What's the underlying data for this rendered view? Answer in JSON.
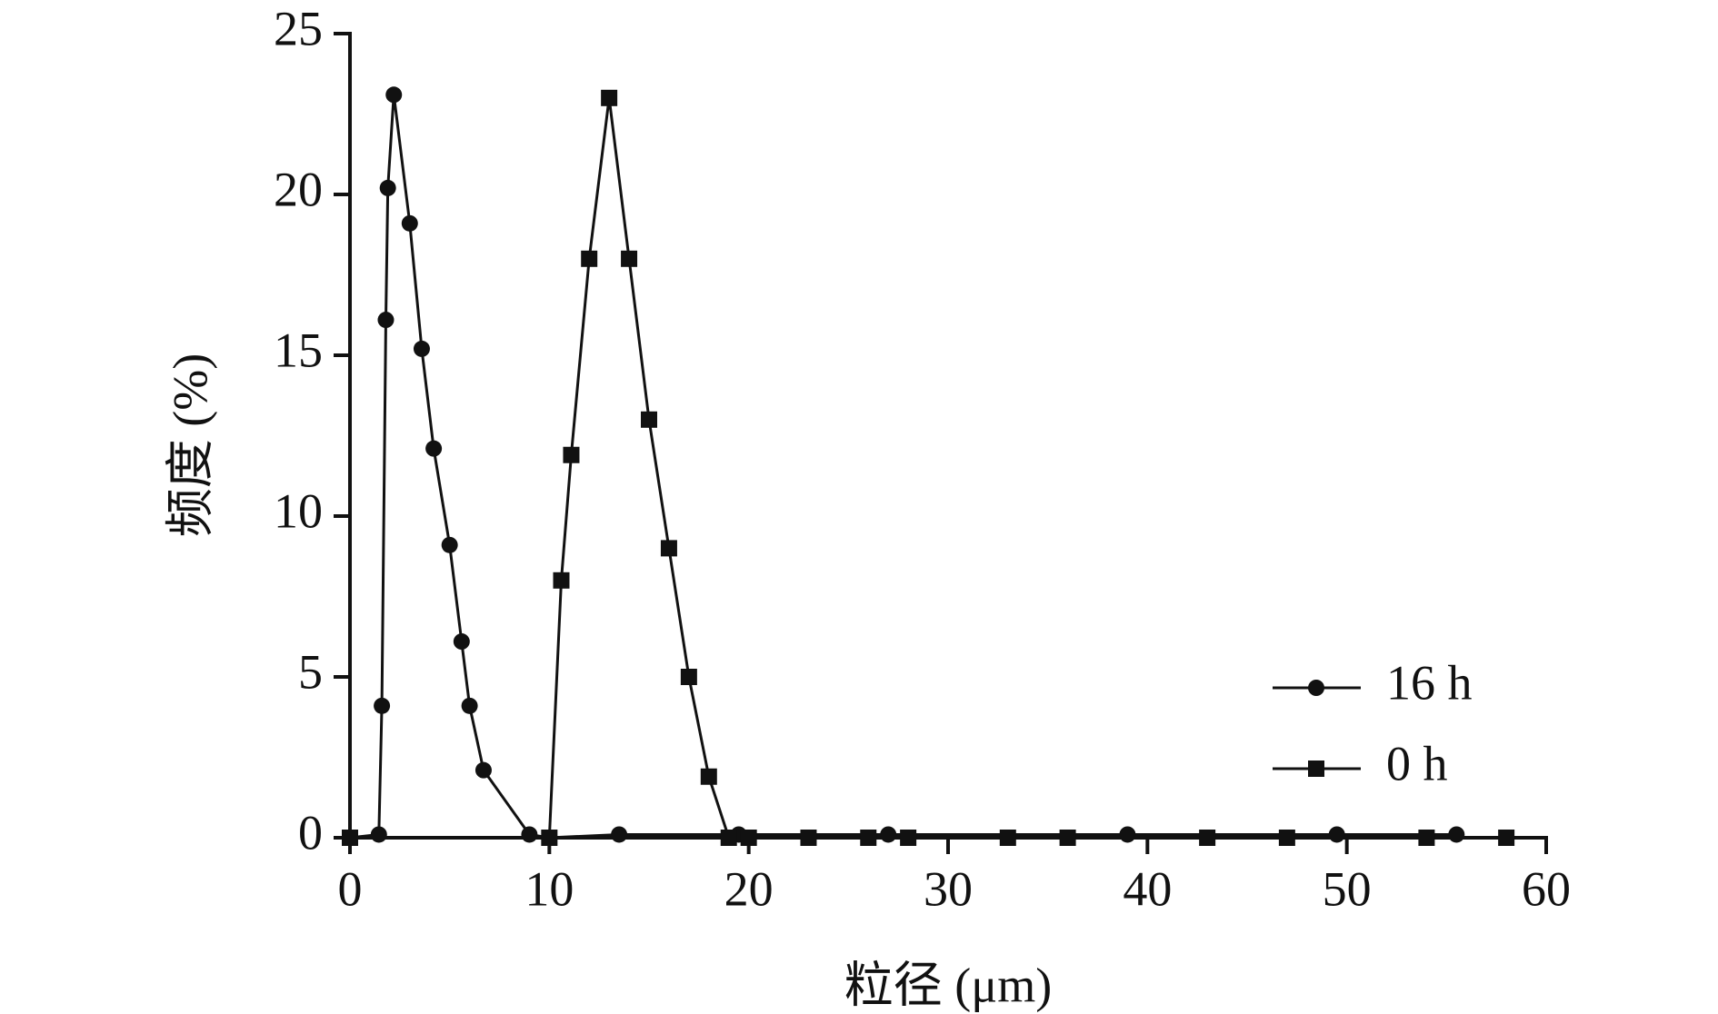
{
  "chart_data": {
    "type": "line",
    "x_label": "粒径 (μm)",
    "y_label": "频度 (%)",
    "xlim": [
      0,
      60
    ],
    "xticks": [
      0,
      10,
      20,
      30,
      40,
      50,
      60
    ],
    "ylim": [
      0,
      25
    ],
    "yticks": [
      0,
      5,
      10,
      15,
      20,
      25
    ],
    "legend": "lower right",
    "series": [
      {
        "name": "16 h",
        "color": "#111111",
        "marker": "circle",
        "x": [
          0,
          1.45,
          1.6,
          1.8,
          1.9,
          2.2,
          3.0,
          3.6,
          4.2,
          5.0,
          5.6,
          6.0,
          6.7,
          9.0,
          10,
          13.5,
          19.5,
          27,
          39,
          49.5,
          55.5
        ],
        "values": [
          0,
          0.1,
          4.1,
          16.1,
          20.2,
          23.1,
          19.1,
          15.2,
          12.1,
          9.1,
          6.1,
          4.1,
          2.1,
          0.1,
          0,
          0.1,
          0.1,
          0.1,
          0.1,
          0.1,
          0.1
        ]
      },
      {
        "name": "0 h",
        "color": "#111111",
        "marker": "square",
        "x": [
          0,
          10,
          10.6,
          11.1,
          12,
          13,
          14,
          15,
          16,
          17,
          18,
          19,
          20,
          23,
          26,
          28,
          33,
          36,
          43,
          47,
          54,
          58
        ],
        "values": [
          0,
          0,
          8,
          11.9,
          18,
          23,
          18,
          13,
          9,
          5,
          1.9,
          0,
          0,
          0,
          0,
          0,
          0,
          0,
          0,
          0,
          0,
          0
        ]
      }
    ]
  }
}
